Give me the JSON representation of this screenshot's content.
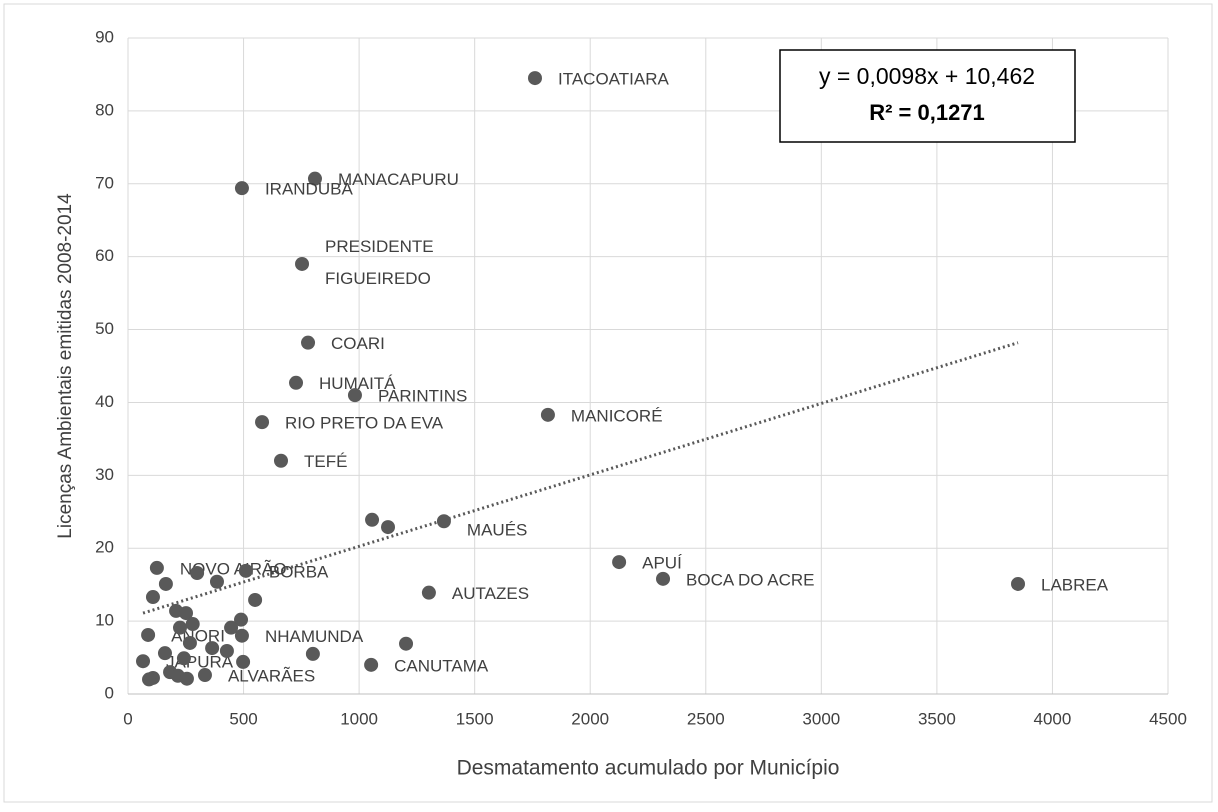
{
  "chart_data": {
    "type": "scatter",
    "x_label": "Desmatamento acumulado por Município",
    "y_label": "Licenças Ambientais emitidas 2008-2014",
    "xlim": [
      0,
      4500
    ],
    "xticks": [
      0,
      500,
      1000,
      1500,
      2000,
      2500,
      3000,
      3500,
      4000,
      4500
    ],
    "ylim": [
      0,
      90
    ],
    "yticks": [
      0,
      10,
      20,
      30,
      40,
      50,
      60,
      70,
      80,
      90
    ],
    "grid": true,
    "color": "#595959",
    "x": [
      1761,
      809,
      493,
      753,
      779,
      727,
      982,
      580,
      1817,
      662,
      1367,
      2125,
      2315,
      3851,
      1302,
      125,
      510,
      493,
      87,
      1052,
      65,
      333,
      1056,
      1125,
      164,
      299,
      385,
      108,
      550,
      208,
      251,
      489,
      446,
      225,
      800,
      1203,
      498,
      428,
      364,
      268,
      242,
      182,
      216,
      108,
      91,
      255,
      280,
      160
    ],
    "y": [
      84.5,
      70.7,
      69.4,
      59.0,
      48.2,
      42.7,
      41.0,
      37.3,
      38.3,
      32.0,
      23.7,
      18.1,
      15.8,
      15.1,
      13.9,
      17.3,
      16.9,
      8.0,
      8.1,
      4.0,
      4.5,
      2.6,
      23.9,
      22.9,
      15.1,
      16.6,
      15.4,
      13.3,
      12.9,
      11.4,
      11.1,
      10.2,
      9.1,
      9.1,
      5.5,
      6.9,
      4.4,
      5.9,
      6.3,
      7.0,
      4.9,
      3.0,
      2.5,
      2.2,
      2.0,
      2.1,
      9.6,
      5.6
    ],
    "point_labels": [
      "ITACOATIARA",
      "MANACAPURU",
      "IRANDUBA",
      "PRESIDENTE\nFIGUEIREDO",
      "COARI",
      "HUMAITÁ",
      "PARINTINS",
      "RIO PRETO DA EVA",
      "MANICORÉ",
      "TEFÉ",
      "MAUÉS",
      "APUÍ",
      "BOCA DO ACRE",
      "LABREA",
      "AUTAZES",
      "NOVO AIRÃO",
      "BORBA",
      "NHAMUNDA",
      "ANORI",
      "CANUTAMA",
      "JAPURÁ",
      "ALVARÃES",
      null,
      null,
      null,
      null,
      null,
      null,
      null,
      null,
      null,
      null,
      null,
      null,
      null,
      null,
      null,
      null,
      null,
      null,
      null,
      null,
      null,
      null,
      null,
      null,
      null,
      null
    ],
    "trendline": {
      "slope": 0.0098,
      "intercept": 10.462,
      "label": "y = 0,0098x + 10,462",
      "r2": 0.1271,
      "r2_label": "R² = 0,1271"
    }
  }
}
